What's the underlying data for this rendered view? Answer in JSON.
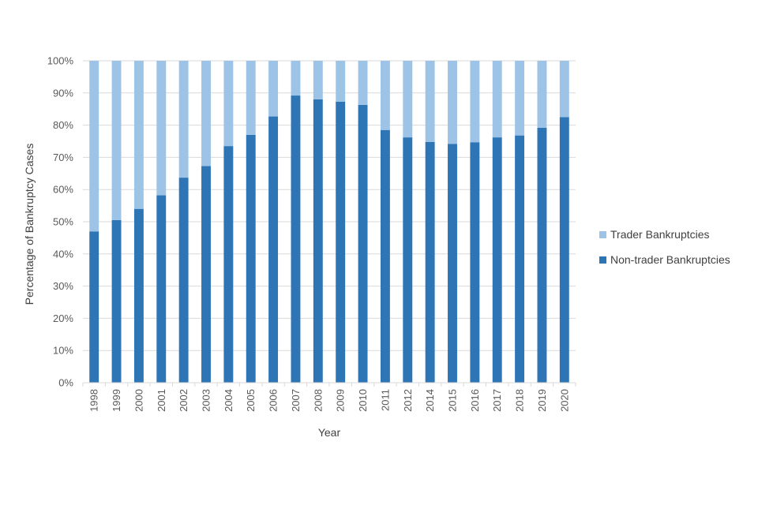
{
  "chart_data": {
    "type": "bar",
    "stacked": true,
    "percent_stacked": true,
    "title": "",
    "xlabel": "Year",
    "ylabel": "Percentage of Bankruptcy Cases",
    "ylim": [
      0,
      100
    ],
    "y_tick_format": "percent",
    "y_ticks": [
      0,
      10,
      20,
      30,
      40,
      50,
      60,
      70,
      80,
      90,
      100
    ],
    "grid": true,
    "legend_position": "right",
    "categories": [
      "1998",
      "1999",
      "2000",
      "2001",
      "2002",
      "2003",
      "2004",
      "2005",
      "2006",
      "2007",
      "2008",
      "2009",
      "2010",
      "2011",
      "2012",
      "2014",
      "2015",
      "2016",
      "2017",
      "2018",
      "2019",
      "2020"
    ],
    "series": [
      {
        "name": "Non-trader Bankruptcies",
        "color": "#2e75b6",
        "values": [
          47,
          50.5,
          54,
          58.2,
          63.7,
          67.3,
          73.5,
          77,
          82.7,
          89.2,
          88,
          87.3,
          86.3,
          78.5,
          76.2,
          74.8,
          74.2,
          74.7,
          76.2,
          76.8,
          79.2,
          82.5
        ]
      },
      {
        "name": "Trader Bankruptcies",
        "color": "#9dc3e6",
        "values": [
          53,
          49.5,
          46,
          41.8,
          36.3,
          32.7,
          26.5,
          23,
          17.3,
          10.8,
          12,
          12.7,
          13.7,
          21.5,
          23.8,
          25.2,
          25.8,
          25.3,
          23.8,
          23.2,
          20.8,
          17.5
        ]
      }
    ],
    "legend_order": [
      "Trader Bankruptcies",
      "Non-trader Bankruptcies"
    ]
  }
}
